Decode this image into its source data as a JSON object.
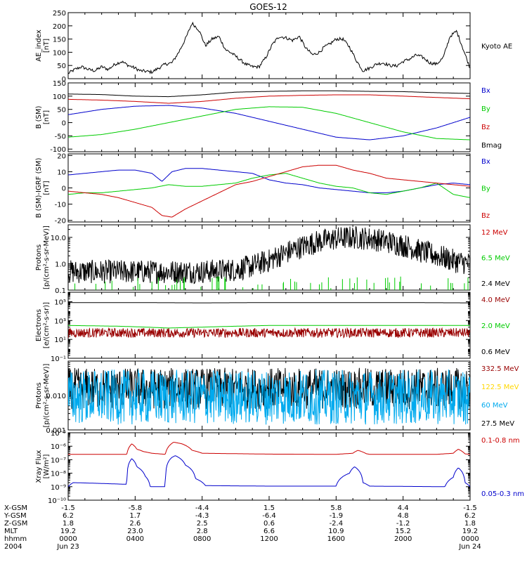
{
  "title": "GOES-12",
  "chart_data": [
    {
      "panel": "ae",
      "type": "line",
      "ylabel": [
        "AE_index",
        "[nT]"
      ],
      "ylim": [
        0,
        250
      ],
      "scale": "linear",
      "ticks": [
        0,
        50,
        100,
        150,
        200,
        250
      ],
      "tick_labels": [
        "0",
        "50",
        "100",
        "150",
        "200",
        "250"
      ],
      "legend": [
        {
          "label": "Kyoto AE",
          "color": "#000000"
        }
      ],
      "series": [
        {
          "name": "Kyoto AE",
          "color": "#000000",
          "kind": "line",
          "x_hours": [
            0,
            0.4,
            0.8,
            1.2,
            1.6,
            2,
            2.4,
            2.8,
            3.2,
            3.6,
            4,
            4.3,
            4.6,
            5,
            5.4,
            5.8,
            6.2,
            6.6,
            7,
            7.4,
            7.8,
            8.2,
            8.6,
            9,
            9.4,
            9.8,
            10.2,
            10.6,
            11,
            11.4,
            11.8,
            12.2,
            12.6,
            13,
            13.4,
            13.8,
            14.2,
            14.6,
            15,
            15.3,
            15.6,
            16,
            16.4,
            16.8,
            17.2,
            17.6,
            18,
            18.4,
            18.8,
            19.2,
            19.6,
            20,
            20.4,
            20.8,
            21.2,
            21.6,
            22,
            22.4,
            22.8,
            23.2,
            23.6,
            24
          ],
          "values": [
            20,
            35,
            45,
            35,
            30,
            45,
            35,
            55,
            65,
            50,
            40,
            30,
            28,
            25,
            40,
            55,
            60,
            100,
            150,
            210,
            185,
            125,
            150,
            160,
            110,
            95,
            75,
            55,
            45,
            45,
            80,
            130,
            160,
            155,
            145,
            160,
            115,
            90,
            100,
            120,
            130,
            150,
            150,
            120,
            70,
            30,
            40,
            55,
            60,
            50,
            48,
            65,
            75,
            90,
            80,
            60,
            55,
            80,
            160,
            180,
            110,
            40
          ]
        }
      ]
    },
    {
      "panel": "b-sm",
      "type": "line",
      "ylabel": [
        "B (SM)",
        "[nT]"
      ],
      "ylim": [
        -110,
        150
      ],
      "scale": "linear",
      "ticks": [
        -100,
        -50,
        0,
        50,
        100,
        150
      ],
      "tick_labels": [
        "-100",
        "-50",
        "0",
        "50",
        "100",
        "150"
      ],
      "legend": [
        {
          "label": "Bx",
          "color": "#0000cc"
        },
        {
          "label": "By",
          "color": "#00cc00"
        },
        {
          "label": "Bz",
          "color": "#cc0000"
        },
        {
          "label": "Bmag",
          "color": "#000000"
        }
      ],
      "series": [
        {
          "name": "Bx",
          "color": "#0000cc",
          "kind": "line",
          "x_hours": [
            0,
            2,
            4,
            6,
            8,
            10,
            12,
            14,
            16,
            18,
            20,
            22,
            24
          ],
          "values": [
            30,
            50,
            62,
            65,
            55,
            35,
            5,
            -25,
            -55,
            -65,
            -50,
            -20,
            20
          ]
        },
        {
          "name": "By",
          "color": "#00cc00",
          "kind": "line",
          "x_hours": [
            0,
            2,
            4,
            6,
            8,
            10,
            12,
            14,
            16,
            18,
            20,
            22,
            24
          ],
          "values": [
            -55,
            -45,
            -25,
            0,
            25,
            50,
            60,
            58,
            35,
            0,
            -35,
            -60,
            -65
          ]
        },
        {
          "name": "Bz",
          "color": "#cc0000",
          "kind": "line",
          "x_hours": [
            0,
            2,
            4,
            6,
            8,
            10,
            12,
            14,
            16,
            18,
            20,
            22,
            24
          ],
          "values": [
            88,
            85,
            80,
            73,
            80,
            92,
            100,
            103,
            105,
            105,
            100,
            95,
            90
          ]
        },
        {
          "name": "Bmag",
          "color": "#000000",
          "kind": "line",
          "x_hours": [
            0,
            2,
            4,
            6,
            8,
            10,
            12,
            14,
            16,
            18,
            20,
            22,
            24
          ],
          "values": [
            108,
            106,
            100,
            98,
            105,
            115,
            118,
            120,
            120,
            118,
            117,
            113,
            110
          ]
        }
      ]
    },
    {
      "panel": "b-igrf",
      "type": "line",
      "ylabel": [
        "B (SM)-IGRF (SM)",
        "[nT]"
      ],
      "ylim": [
        -21,
        21
      ],
      "scale": "linear",
      "ticks": [
        -20,
        -10,
        0,
        10,
        20
      ],
      "tick_labels": [
        "-20",
        "-10",
        "0",
        "10",
        "20"
      ],
      "legend": [
        {
          "label": "Bx",
          "color": "#0000cc"
        },
        {
          "label": "By",
          "color": "#00cc00"
        },
        {
          "label": "Bz",
          "color": "#cc0000"
        }
      ],
      "series": [
        {
          "name": "Bx",
          "color": "#0000cc",
          "kind": "line",
          "x_hours": [
            0,
            1,
            2,
            3,
            4,
            5,
            5.6,
            6.2,
            7,
            8,
            9,
            10,
            11,
            12,
            13,
            14,
            15,
            16,
            17,
            18,
            19,
            20,
            21,
            22,
            23,
            24
          ],
          "values": [
            8,
            9,
            10,
            11,
            11,
            9,
            4,
            10,
            12,
            12,
            11,
            10,
            9,
            5,
            3,
            2,
            0,
            -1,
            -2,
            -3,
            -3,
            -2,
            0,
            2,
            3,
            2
          ]
        },
        {
          "name": "By",
          "color": "#00cc00",
          "kind": "line",
          "x_hours": [
            0,
            1,
            2,
            3,
            4,
            5,
            6,
            7,
            8,
            9,
            10,
            11,
            12,
            13,
            14,
            15,
            16,
            17,
            18,
            19,
            20,
            21,
            22,
            23,
            24
          ],
          "values": [
            -4,
            -3,
            -3,
            -2,
            -1,
            0,
            2,
            1,
            1,
            2,
            3,
            6,
            8,
            9,
            6,
            3,
            1,
            0,
            -3,
            -4,
            -2,
            0,
            3,
            -4,
            -6
          ]
        },
        {
          "name": "Bz",
          "color": "#cc0000",
          "kind": "line",
          "x_hours": [
            0,
            1,
            2,
            3,
            4,
            5,
            5.6,
            6.2,
            7,
            8,
            9,
            10,
            11,
            12,
            13,
            14,
            15,
            16,
            17,
            18,
            19,
            20,
            21,
            22,
            23,
            24
          ],
          "values": [
            -2,
            -3,
            -4,
            -6,
            -9,
            -12,
            -17,
            -18,
            -13,
            -8,
            -3,
            2,
            4,
            7,
            10,
            13,
            14,
            14,
            11,
            9,
            6,
            5,
            4,
            3,
            2,
            1
          ]
        }
      ]
    },
    {
      "panel": "protons-low",
      "type": "line",
      "ylabel": [
        "Protons",
        "[p/(cm²-s-sr-MeV)]"
      ],
      "ylim": [
        0.1,
        30
      ],
      "scale": "log",
      "ticks": [
        0.1,
        1.0,
        10.0
      ],
      "tick_labels": [
        "0.1",
        "1.0",
        "10.0"
      ],
      "legend": [
        {
          "label": "12 MeV",
          "color": "#cc0000"
        },
        {
          "label": "6.5 MeV",
          "color": "#00cc00"
        },
        {
          "label": "2.4 MeV",
          "color": "#000000"
        }
      ],
      "series": [
        {
          "name": "2.4 MeV",
          "color": "#000000",
          "kind": "log",
          "x_hours": [
            0,
            3,
            6,
            8,
            10,
            11,
            12,
            13,
            14,
            15,
            16,
            17,
            18,
            19,
            20,
            21,
            22,
            23,
            24
          ],
          "values": [
            0.5,
            0.5,
            0.5,
            0.5,
            0.6,
            0.8,
            1.3,
            2.5,
            4.5,
            7,
            9,
            10,
            9,
            7,
            5,
            3,
            2,
            1.3,
            1
          ],
          "noise": 0.45
        },
        {
          "name": "6.5 MeV",
          "color": "#00cc00",
          "kind": "spikes",
          "x_hours": [
            0,
            24
          ],
          "values": [
            0.1,
            0.1
          ],
          "peak": 0.35,
          "count": 60
        }
      ]
    },
    {
      "panel": "electrons",
      "type": "line",
      "ylabel": [
        "Electrons",
        "[e/(cm²-s-sr)]"
      ],
      "ylim": [
        0.1,
        1000000
      ],
      "scale": "log",
      "ticks": [
        0.1,
        10,
        1000,
        100000
      ],
      "tick_labels": [
        "10⁻¹",
        "10¹",
        "10³",
        "10⁵"
      ],
      "legend": [
        {
          "label": "4.0 MeV",
          "color": "#990000"
        },
        {
          "label": "2.0 MeV",
          "color": "#00cc00"
        },
        {
          "label": "0.6 MeV",
          "color": "#000000"
        }
      ],
      "series": [
        {
          "name": "0.6 MeV",
          "color": "#000000",
          "kind": "line",
          "x_hours": [
            0,
            4,
            8,
            12,
            16,
            20,
            24
          ],
          "values": [
            80000,
            80000,
            75000,
            80000,
            80000,
            80000,
            75000
          ]
        },
        {
          "name": "2.0 MeV",
          "color": "#00cc00",
          "kind": "line",
          "x_hours": [
            0,
            3,
            6,
            8,
            10,
            12,
            16,
            20,
            24
          ],
          "values": [
            300,
            250,
            160,
            200,
            250,
            300,
            300,
            300,
            300
          ]
        },
        {
          "name": "4.0 MeV",
          "color": "#990000",
          "kind": "log",
          "x_hours": [
            0,
            24
          ],
          "values": [
            50,
            50
          ],
          "noise": 0.5
        }
      ]
    },
    {
      "panel": "protons-high",
      "type": "line",
      "ylabel": [
        "Protons",
        "[p/(cm²-s-sr-MeV)]"
      ],
      "ylim": [
        0.001,
        0.1
      ],
      "scale": "log",
      "ticks": [
        0.001,
        0.01,
        0.1
      ],
      "tick_labels": [
        "0.001",
        "0.010",
        ""
      ],
      "legend": [
        {
          "label": "332.5 MeV",
          "color": "#990000"
        },
        {
          "label": "122.5 MeV",
          "color": "#ffd700"
        },
        {
          "label": "60 MeV",
          "color": "#00aaee"
        },
        {
          "label": "27.5 MeV",
          "color": "#000000"
        }
      ],
      "series": [
        {
          "name": "27.5 MeV",
          "color": "#000000",
          "kind": "log",
          "x_hours": [
            0,
            24
          ],
          "values": [
            0.016,
            0.016
          ],
          "noise": 0.6
        },
        {
          "name": "60 MeV",
          "color": "#00aaee",
          "kind": "log",
          "x_hours": [
            0,
            24
          ],
          "values": [
            0.009,
            0.009
          ],
          "noise": 0.8
        }
      ]
    },
    {
      "panel": "xray",
      "type": "line",
      "ylabel": [
        "Xray Flux",
        "[W/m²]"
      ],
      "ylim": [
        1e-10,
        1e-05
      ],
      "scale": "log",
      "ticks": [
        1e-10,
        1e-09,
        1e-08,
        1e-07,
        1e-06,
        1e-05
      ],
      "tick_labels": [
        "10⁻¹⁰",
        "10⁻⁹",
        "10⁻⁸",
        "10⁻⁷",
        "10⁻⁶",
        "10⁻⁵"
      ],
      "legend": [
        {
          "label": "0.1-0.8 nm",
          "color": "#cc0000"
        },
        {
          "label": "0.05-0.3 nm",
          "color": "#0000cc"
        }
      ],
      "series": [
        {
          "name": "0.1-0.8 nm",
          "color": "#cc0000",
          "kind": "line",
          "x_hours": [
            0,
            3.5,
            3.8,
            4.1,
            4.5,
            5,
            5.8,
            6.3,
            6.8,
            7.4,
            8,
            12,
            16,
            17,
            17.3,
            17.8,
            18,
            22,
            23,
            23.3,
            23.7,
            24
          ],
          "values": [
            2.5e-07,
            2.5e-07,
            1.5e-06,
            6e-07,
            4e-07,
            3e-07,
            2.5e-07,
            2e-06,
            1.5e-06,
            5e-07,
            3e-07,
            2.6e-07,
            2.5e-07,
            3e-07,
            5e-07,
            2.8e-07,
            2.5e-07,
            2.5e-07,
            3e-07,
            6e-07,
            2.7e-07,
            2.5e-07
          ]
        },
        {
          "name": "0.05-0.3 nm",
          "color": "#0000cc",
          "kind": "line",
          "x_hours": [
            0,
            0.3,
            3.5,
            3.8,
            4.1,
            4.6,
            4.9,
            5.2,
            5.8,
            6.2,
            6.4,
            7,
            7.6,
            8.2,
            12,
            16,
            16.8,
            17.1,
            17.6,
            18,
            22.5,
            23,
            23.3,
            23.7,
            24
          ],
          "values": [
            1e-09,
            2e-09,
            1.5e-09,
            1.2e-07,
            3e-08,
            6e-09,
            1e-09,
            1e-09,
            1e-09,
            1.5e-07,
            2e-07,
            4e-08,
            4e-09,
            1.2e-09,
            1.1e-09,
            1.1e-09,
            1e-08,
            3e-08,
            2e-09,
            1.1e-09,
            1e-09,
            5e-09,
            2.5e-08,
            2e-09,
            1e-09
          ]
        }
      ]
    }
  ],
  "xaxis": {
    "rows": [
      {
        "label": "X-GSM",
        "values": [
          "-1.5",
          "-5.8",
          "-4.4",
          "1.5",
          "5.8",
          "4.4",
          "-1.5"
        ]
      },
      {
        "label": "Y-GSM",
        "values": [
          "6.2",
          "1.7",
          "-4.3",
          "-6.4",
          "-1.9",
          "4.8",
          "6.2"
        ]
      },
      {
        "label": "Z-GSM",
        "values": [
          "1.8",
          "2.6",
          "2.5",
          "0.6",
          "-2.4",
          "-1.2",
          "1.8"
        ]
      },
      {
        "label": "MLT",
        "values": [
          "19.2",
          "23.0",
          "2.8",
          "6.6",
          "10.9",
          "15.2",
          "19.2"
        ]
      },
      {
        "label": "hhmm",
        "values": [
          "0000",
          "0400",
          "0800",
          "1200",
          "1600",
          "2000",
          "0000"
        ]
      },
      {
        "label": "2004",
        "values": [
          "Jun 23",
          "",
          "",
          "",
          "",
          "",
          "Jun 24"
        ]
      }
    ],
    "tick_hours": [
      0,
      4,
      8,
      12,
      16,
      20,
      24
    ]
  }
}
